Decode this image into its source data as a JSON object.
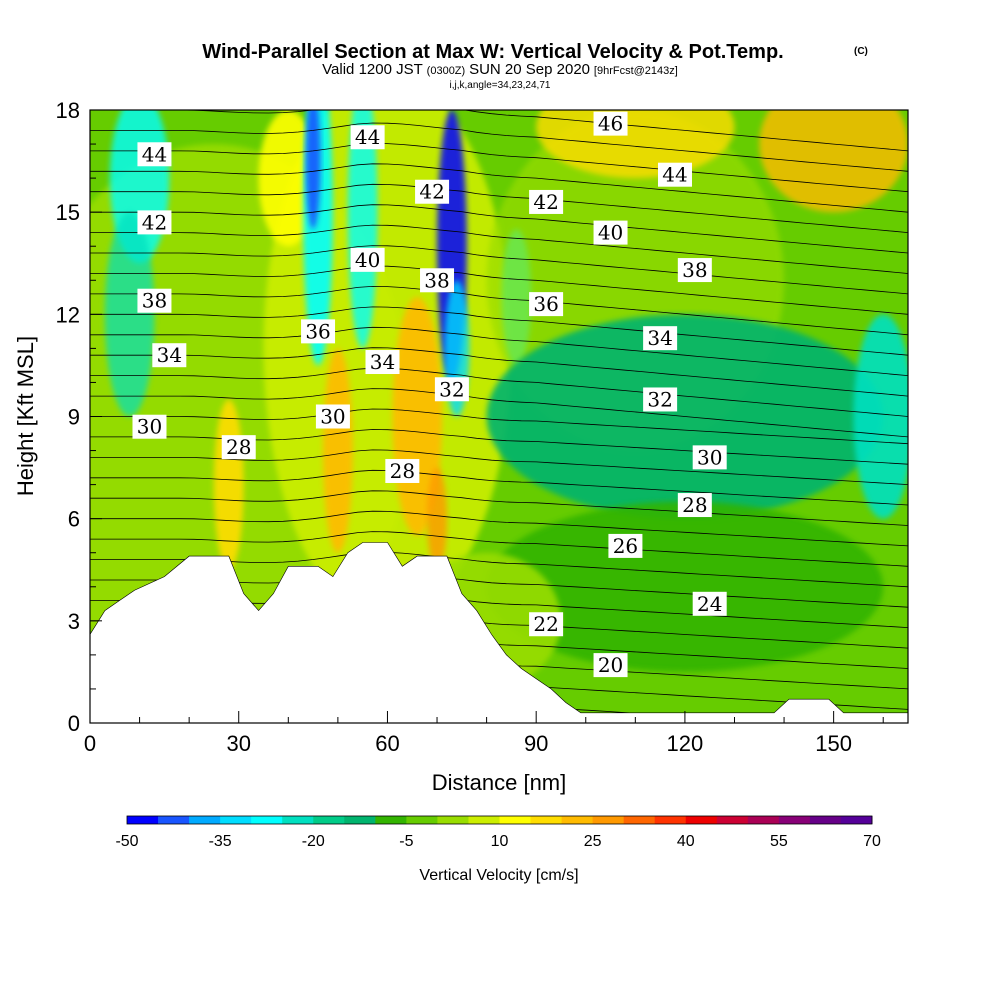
{
  "header": {
    "title": "Wind-Parallel Section at Max W: Vertical Velocity & Pot.Temp.",
    "copyright": "(C)",
    "valid_prefix": "Valid 1200 JST",
    "valid_z": "(0300Z)",
    "valid_date": "SUN 20 Sep 2020",
    "forecast": "[9hrFcst@2143z]",
    "index_line": "i,j,k,angle=34,23,24,71"
  },
  "chart_data": {
    "type": "heatmap",
    "xlabel": "Distance [nm]",
    "ylabel": "Height [Kft MSL]",
    "xlim": [
      0,
      165
    ],
    "ylim": [
      0,
      18
    ],
    "x_ticks": [
      "0",
      "30",
      "60",
      "90",
      "120",
      "150"
    ],
    "x_tick_values": [
      0,
      30,
      60,
      90,
      120,
      150
    ],
    "y_ticks": [
      "0",
      "3",
      "6",
      "9",
      "12",
      "15",
      "18"
    ],
    "y_tick_values": [
      0,
      3,
      6,
      9,
      12,
      15,
      18
    ],
    "field_label": "Vertical Velocity [cm/s]",
    "colorbar": {
      "label": "Vertical Velocity [cm/s]",
      "tick_labels": [
        "-50",
        "-35",
        "-20",
        "-5",
        "10",
        "25",
        "40",
        "55",
        "70"
      ],
      "tick_values": [
        -50,
        -35,
        -20,
        -5,
        10,
        25,
        40,
        55,
        70
      ],
      "colors": [
        "#0000ff",
        "#1955ff",
        "#00aaff",
        "#00ddff",
        "#00ffff",
        "#00e0c0",
        "#00cc88",
        "#00b46e",
        "#33b400",
        "#66cc00",
        "#99dd00",
        "#ccee00",
        "#ffff00",
        "#ffdd00",
        "#ffbb00",
        "#ff9900",
        "#ff6600",
        "#ff3300",
        "#ee0000",
        "#cc0033",
        "#aa0055",
        "#880077",
        "#660088",
        "#550099"
      ]
    },
    "contour_field": "Potential temperature",
    "contour_labels": [
      {
        "text": "44",
        "x": 13,
        "y": 16.7
      },
      {
        "text": "44",
        "x": 56,
        "y": 17.2
      },
      {
        "text": "46",
        "x": 105,
        "y": 17.6
      },
      {
        "text": "44",
        "x": 118,
        "y": 16.1
      },
      {
        "text": "42",
        "x": 13,
        "y": 14.7
      },
      {
        "text": "42",
        "x": 69,
        "y": 15.6
      },
      {
        "text": "42",
        "x": 92,
        "y": 15.3
      },
      {
        "text": "40",
        "x": 105,
        "y": 14.4
      },
      {
        "text": "40",
        "x": 56,
        "y": 13.6
      },
      {
        "text": "38",
        "x": 13,
        "y": 12.4
      },
      {
        "text": "38",
        "x": 70,
        "y": 13.0
      },
      {
        "text": "38",
        "x": 122,
        "y": 13.3
      },
      {
        "text": "36",
        "x": 92,
        "y": 12.3
      },
      {
        "text": "36",
        "x": 46,
        "y": 11.5
      },
      {
        "text": "34",
        "x": 16,
        "y": 10.8
      },
      {
        "text": "34",
        "x": 59,
        "y": 10.6
      },
      {
        "text": "34",
        "x": 115,
        "y": 11.3
      },
      {
        "text": "32",
        "x": 73,
        "y": 9.8
      },
      {
        "text": "32",
        "x": 115,
        "y": 9.5
      },
      {
        "text": "30",
        "x": 12,
        "y": 8.7
      },
      {
        "text": "30",
        "x": 49,
        "y": 9.0
      },
      {
        "text": "30",
        "x": 125,
        "y": 7.8
      },
      {
        "text": "28",
        "x": 30,
        "y": 8.1
      },
      {
        "text": "28",
        "x": 63,
        "y": 7.4
      },
      {
        "text": "28",
        "x": 122,
        "y": 6.4
      },
      {
        "text": "26",
        "x": 108,
        "y": 5.2
      },
      {
        "text": "24",
        "x": 125,
        "y": 3.5
      },
      {
        "text": "22",
        "x": 92,
        "y": 2.9
      },
      {
        "text": "20",
        "x": 105,
        "y": 1.7
      }
    ],
    "terrain_height_nm_kft": [
      [
        0,
        2.6
      ],
      [
        3,
        3.3
      ],
      [
        6,
        3.6
      ],
      [
        9,
        3.9
      ],
      [
        15,
        4.3
      ],
      [
        20,
        4.9
      ],
      [
        28,
        4.9
      ],
      [
        31,
        3.8
      ],
      [
        34,
        3.3
      ],
      [
        37,
        3.8
      ],
      [
        40,
        4.6
      ],
      [
        46,
        4.6
      ],
      [
        49,
        4.3
      ],
      [
        52,
        5.0
      ],
      [
        55,
        5.3
      ],
      [
        60,
        5.3
      ],
      [
        63,
        4.6
      ],
      [
        66,
        4.9
      ],
      [
        72,
        4.9
      ],
      [
        75,
        3.8
      ],
      [
        78,
        3.3
      ],
      [
        81,
        2.6
      ],
      [
        84,
        2.0
      ],
      [
        87,
        1.6
      ],
      [
        90,
        1.3
      ],
      [
        93,
        1.0
      ],
      [
        96,
        0.6
      ],
      [
        99,
        0.3
      ],
      [
        138,
        0.3
      ],
      [
        141,
        0.7
      ],
      [
        149,
        0.7
      ],
      [
        152,
        0.3
      ],
      [
        165,
        0.3
      ]
    ]
  }
}
